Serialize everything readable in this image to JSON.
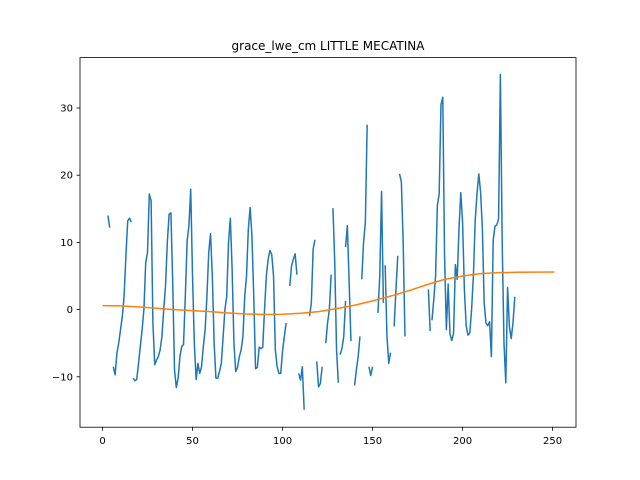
{
  "chart_data": {
    "type": "line",
    "title": "grace_lwe_cm LITTLE MECATINA",
    "xlabel": "",
    "ylabel": "",
    "xlim": [
      -12.5,
      263
    ],
    "ylim": [
      -17.5,
      37.5
    ],
    "xticks": [
      0,
      50,
      100,
      150,
      200,
      250
    ],
    "yticks": [
      -10,
      0,
      10,
      20,
      30
    ],
    "grid": false,
    "series": [
      {
        "color": "#1f77b4",
        "segments": [
          [
            [
              3,
              14
            ],
            [
              4,
              12.2
            ]
          ],
          [
            [
              6,
              -8.5
            ],
            [
              7,
              -9.7
            ],
            [
              8,
              -6.5
            ],
            [
              9,
              -5
            ],
            [
              10,
              -3
            ],
            [
              11,
              -1
            ],
            [
              12,
              2
            ],
            [
              13,
              8
            ],
            [
              14,
              13.2
            ],
            [
              15,
              13.6
            ],
            [
              16,
              13
            ]
          ],
          [
            [
              17,
              -10.2
            ],
            [
              18,
              -10.6
            ],
            [
              19,
              -10.4
            ],
            [
              20,
              -8
            ],
            [
              21,
              -5.5
            ],
            [
              22,
              -3
            ],
            [
              23,
              0
            ],
            [
              24,
              7
            ],
            [
              25,
              8.5
            ],
            [
              26,
              17.2
            ],
            [
              27,
              16.2
            ],
            [
              28,
              -2
            ],
            [
              29,
              -8.2
            ],
            [
              30,
              -7.5
            ],
            [
              31,
              -7
            ],
            [
              32,
              -6
            ],
            [
              33,
              -4
            ],
            [
              34,
              0
            ],
            [
              35,
              3.5
            ],
            [
              36,
              10
            ],
            [
              37,
              14.2
            ],
            [
              38,
              14.4
            ],
            [
              39,
              4
            ],
            [
              40,
              -9
            ],
            [
              41,
              -11.6
            ],
            [
              42,
              -10.2
            ],
            [
              43,
              -7
            ],
            [
              44,
              -5.5
            ],
            [
              45,
              -5.2
            ],
            [
              46,
              2
            ],
            [
              47,
              10.2
            ],
            [
              48,
              12.5
            ],
            [
              49,
              17.9
            ],
            [
              50,
              5
            ],
            [
              51,
              -5
            ],
            [
              52,
              -10.4
            ],
            [
              53,
              -8
            ],
            [
              54,
              -9.5
            ],
            [
              55,
              -8.5
            ],
            [
              56,
              -5.5
            ],
            [
              57,
              -3
            ],
            [
              58,
              2
            ],
            [
              59,
              8.5
            ],
            [
              60,
              11.3
            ],
            [
              61,
              5
            ],
            [
              62,
              -5
            ],
            [
              63,
              -10.2
            ],
            [
              64,
              -10.2
            ],
            [
              65,
              -9.2
            ],
            [
              66,
              -8
            ],
            [
              67,
              -4
            ],
            [
              68,
              0
            ],
            [
              69,
              2
            ],
            [
              70,
              10
            ],
            [
              71,
              13.6
            ],
            [
              72,
              6
            ],
            [
              73,
              -5
            ],
            [
              74,
              -9.2
            ],
            [
              75,
              -8.6
            ],
            [
              76,
              -7
            ],
            [
              77,
              -6
            ],
            [
              78,
              -4
            ],
            [
              79,
              2
            ],
            [
              80,
              5
            ],
            [
              81,
              12
            ],
            [
              82,
              15.2
            ],
            [
              83,
              11
            ],
            [
              84,
              2
            ],
            [
              85,
              -8.8
            ],
            [
              86,
              -8.6
            ],
            [
              87,
              -5.6
            ],
            [
              88,
              -5.8
            ],
            [
              89,
              -5.6
            ],
            [
              90,
              0
            ],
            [
              91,
              5
            ],
            [
              92,
              7.5
            ],
            [
              93,
              8.8
            ],
            [
              94,
              8.2
            ],
            [
              95,
              5
            ],
            [
              96,
              -6
            ],
            [
              97,
              -8.5
            ],
            [
              98,
              -9.5
            ],
            [
              99,
              -9.5
            ],
            [
              100,
              -6.2
            ],
            [
              101,
              -4
            ],
            [
              102,
              -2
            ]
          ],
          [
            [
              104,
              3.5
            ],
            [
              105,
              6.5
            ],
            [
              106,
              7.5
            ],
            [
              107,
              8.3
            ],
            [
              108,
              5.2
            ]
          ],
          [
            [
              109,
              -9.5
            ],
            [
              110,
              -10.5
            ],
            [
              111,
              -8.5
            ],
            [
              112,
              -14.9
            ]
          ],
          [
            [
              115,
              -1
            ],
            [
              116,
              1
            ],
            [
              117,
              9
            ],
            [
              118,
              10.4
            ]
          ],
          [
            [
              119,
              -7.7
            ],
            [
              120,
              -11.5
            ],
            [
              121,
              -11
            ],
            [
              122,
              -8.5
            ]
          ],
          [
            [
              124,
              -5
            ],
            [
              125,
              -2
            ],
            [
              126,
              0
            ],
            [
              127,
              5.2
            ]
          ],
          [
            [
              128,
              15.1
            ],
            [
              129,
              7
            ],
            [
              130,
              -6
            ],
            [
              131,
              -10.9
            ]
          ],
          [
            [
              132,
              -6.7
            ],
            [
              133,
              -5.8
            ],
            [
              134,
              -4
            ],
            [
              135,
              1.3
            ]
          ],
          [
            [
              135,
              9.3
            ],
            [
              136,
              12.5
            ],
            [
              137,
              4
            ],
            [
              138,
              -4.7
            ]
          ],
          [
            [
              140,
              -11.3
            ],
            [
              141,
              -9
            ],
            [
              142,
              -7
            ],
            [
              143,
              -4
            ]
          ],
          [
            [
              144,
              4.5
            ],
            [
              145,
              10
            ],
            [
              146,
              13
            ],
            [
              147,
              27.5
            ]
          ],
          [
            [
              148,
              -8.5
            ],
            [
              149,
              -9.8
            ],
            [
              150,
              -8.5
            ]
          ],
          [
            [
              153,
              -0.5
            ],
            [
              154,
              5
            ],
            [
              155,
              17.6
            ],
            [
              156,
              1
            ]
          ],
          [
            [
              157,
              6.6
            ],
            [
              158,
              -4
            ],
            [
              159,
              -8
            ],
            [
              160,
              -6.4
            ]
          ],
          [
            [
              162,
              -2.5
            ],
            [
              163,
              3
            ],
            [
              164,
              8
            ]
          ],
          [
            [
              165,
              20.2
            ],
            [
              166,
              19
            ],
            [
              167,
              10
            ],
            [
              168,
              -4
            ]
          ],
          [
            [
              181,
              3
            ],
            [
              182,
              -3.2
            ]
          ],
          [
            [
              183,
              -1.6
            ],
            [
              184,
              1.5
            ],
            [
              185,
              5
            ],
            [
              186,
              15.5
            ],
            [
              187,
              17.2
            ],
            [
              188,
              30.5
            ],
            [
              189,
              31.6
            ],
            [
              190,
              8
            ],
            [
              191,
              -3
            ],
            [
              192,
              3.8
            ],
            [
              193,
              -3.6
            ],
            [
              194,
              -4.6
            ],
            [
              195,
              -3.5
            ],
            [
              196,
              6.7
            ],
            [
              197,
              4.5
            ],
            [
              198,
              12
            ],
            [
              199,
              17.4
            ],
            [
              200,
              13
            ],
            [
              201,
              3
            ],
            [
              202,
              -2.4
            ],
            [
              203,
              -3.8
            ],
            [
              204,
              -3.5
            ],
            [
              205,
              0
            ],
            [
              206,
              5
            ],
            [
              207,
              13.2
            ],
            [
              208,
              17.2
            ],
            [
              209,
              20.2
            ],
            [
              210,
              17.5
            ],
            [
              211,
              12
            ],
            [
              212,
              1
            ],
            [
              213,
              -2
            ],
            [
              214,
              -2.4
            ],
            [
              215,
              -1.8
            ],
            [
              216,
              -7
            ],
            [
              217,
              10.3
            ],
            [
              218,
              12.4
            ],
            [
              219,
              12.6
            ],
            [
              220,
              13.5
            ],
            [
              221,
              35
            ],
            [
              222,
              10
            ],
            [
              223,
              -5
            ],
            [
              224,
              -10.9
            ],
            [
              225,
              3.3
            ],
            [
              226,
              -2.5
            ],
            [
              227,
              -4.3
            ],
            [
              228,
              -2
            ],
            [
              229,
              1.9
            ]
          ]
        ]
      },
      {
        "color": "#ff7f0e",
        "smooth": true,
        "points": [
          [
            0,
            0.6
          ],
          [
            10,
            0.55
          ],
          [
            20,
            0.4
          ],
          [
            30,
            0.2
          ],
          [
            40,
            0
          ],
          [
            50,
            -0.15
          ],
          [
            60,
            -0.3
          ],
          [
            70,
            -0.5
          ],
          [
            80,
            -0.65
          ],
          [
            90,
            -0.72
          ],
          [
            100,
            -0.7
          ],
          [
            110,
            -0.55
          ],
          [
            120,
            -0.3
          ],
          [
            130,
            0.15
          ],
          [
            140,
            0.65
          ],
          [
            150,
            1.3
          ],
          [
            160,
            2.0
          ],
          [
            170,
            2.8
          ],
          [
            180,
            3.7
          ],
          [
            190,
            4.5
          ],
          [
            200,
            5.0
          ],
          [
            210,
            5.35
          ],
          [
            220,
            5.5
          ],
          [
            230,
            5.55
          ],
          [
            240,
            5.58
          ],
          [
            251,
            5.6
          ]
        ]
      }
    ]
  }
}
